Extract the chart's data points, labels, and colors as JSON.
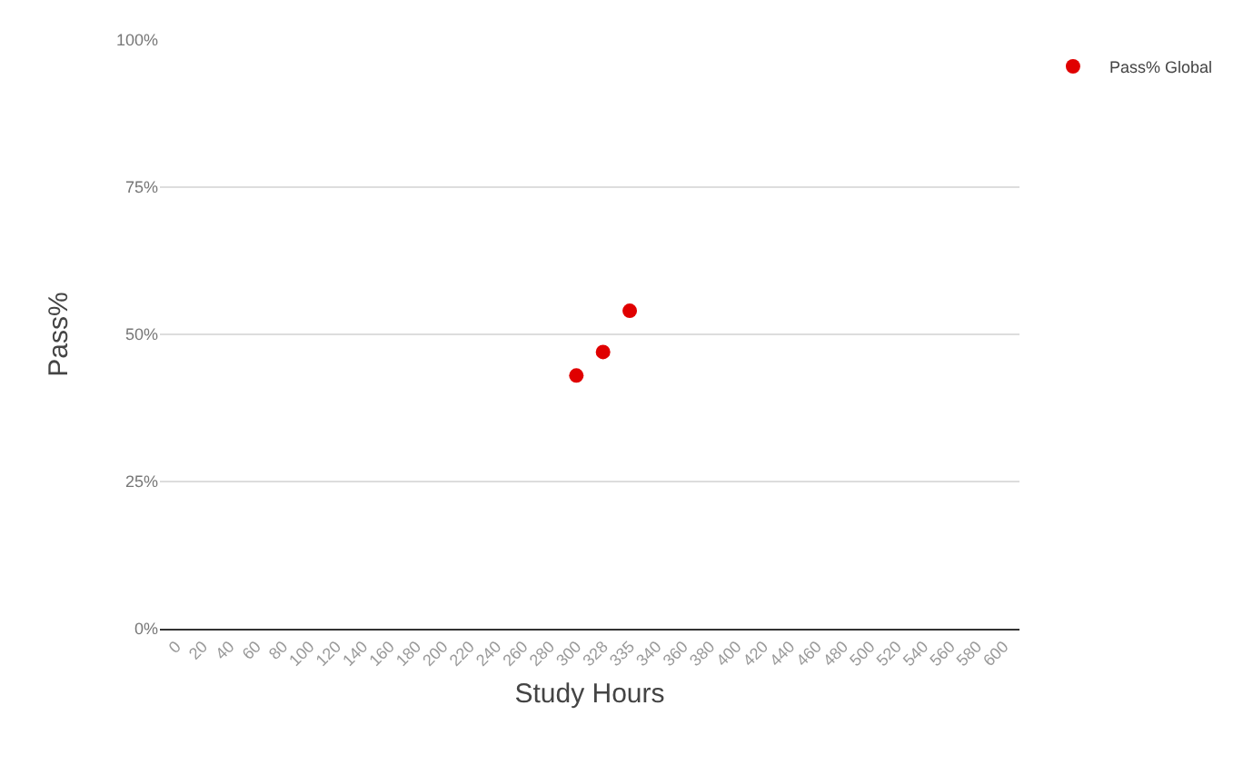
{
  "chart_data": {
    "type": "scatter",
    "xlabel": "Study Hours",
    "ylabel": "Pass%",
    "categories": [
      "0",
      "20",
      "40",
      "60",
      "80",
      "100",
      "120",
      "140",
      "160",
      "180",
      "200",
      "220",
      "240",
      "260",
      "280",
      "300",
      "328",
      "335",
      "340",
      "360",
      "380",
      "400",
      "420",
      "440",
      "460",
      "480",
      "500",
      "520",
      "540",
      "560",
      "580",
      "600"
    ],
    "series": [
      {
        "name": "Pass% Global",
        "color": "#e00000",
        "values": [
          null,
          null,
          null,
          null,
          null,
          null,
          null,
          null,
          null,
          null,
          null,
          null,
          null,
          null,
          null,
          43,
          47,
          54,
          null,
          null,
          null,
          null,
          null,
          null,
          null,
          null,
          null,
          null,
          null,
          null,
          null,
          null
        ]
      }
    ],
    "ylim": [
      0,
      100
    ],
    "yticks": [
      {
        "value": 0,
        "label": "0%"
      },
      {
        "value": 25,
        "label": "25%"
      },
      {
        "value": 50,
        "label": "50%"
      },
      {
        "value": 75,
        "label": "75%"
      },
      {
        "value": 100,
        "label": "100%"
      }
    ],
    "grid": "y",
    "legend": "top right",
    "marker": "circle"
  }
}
